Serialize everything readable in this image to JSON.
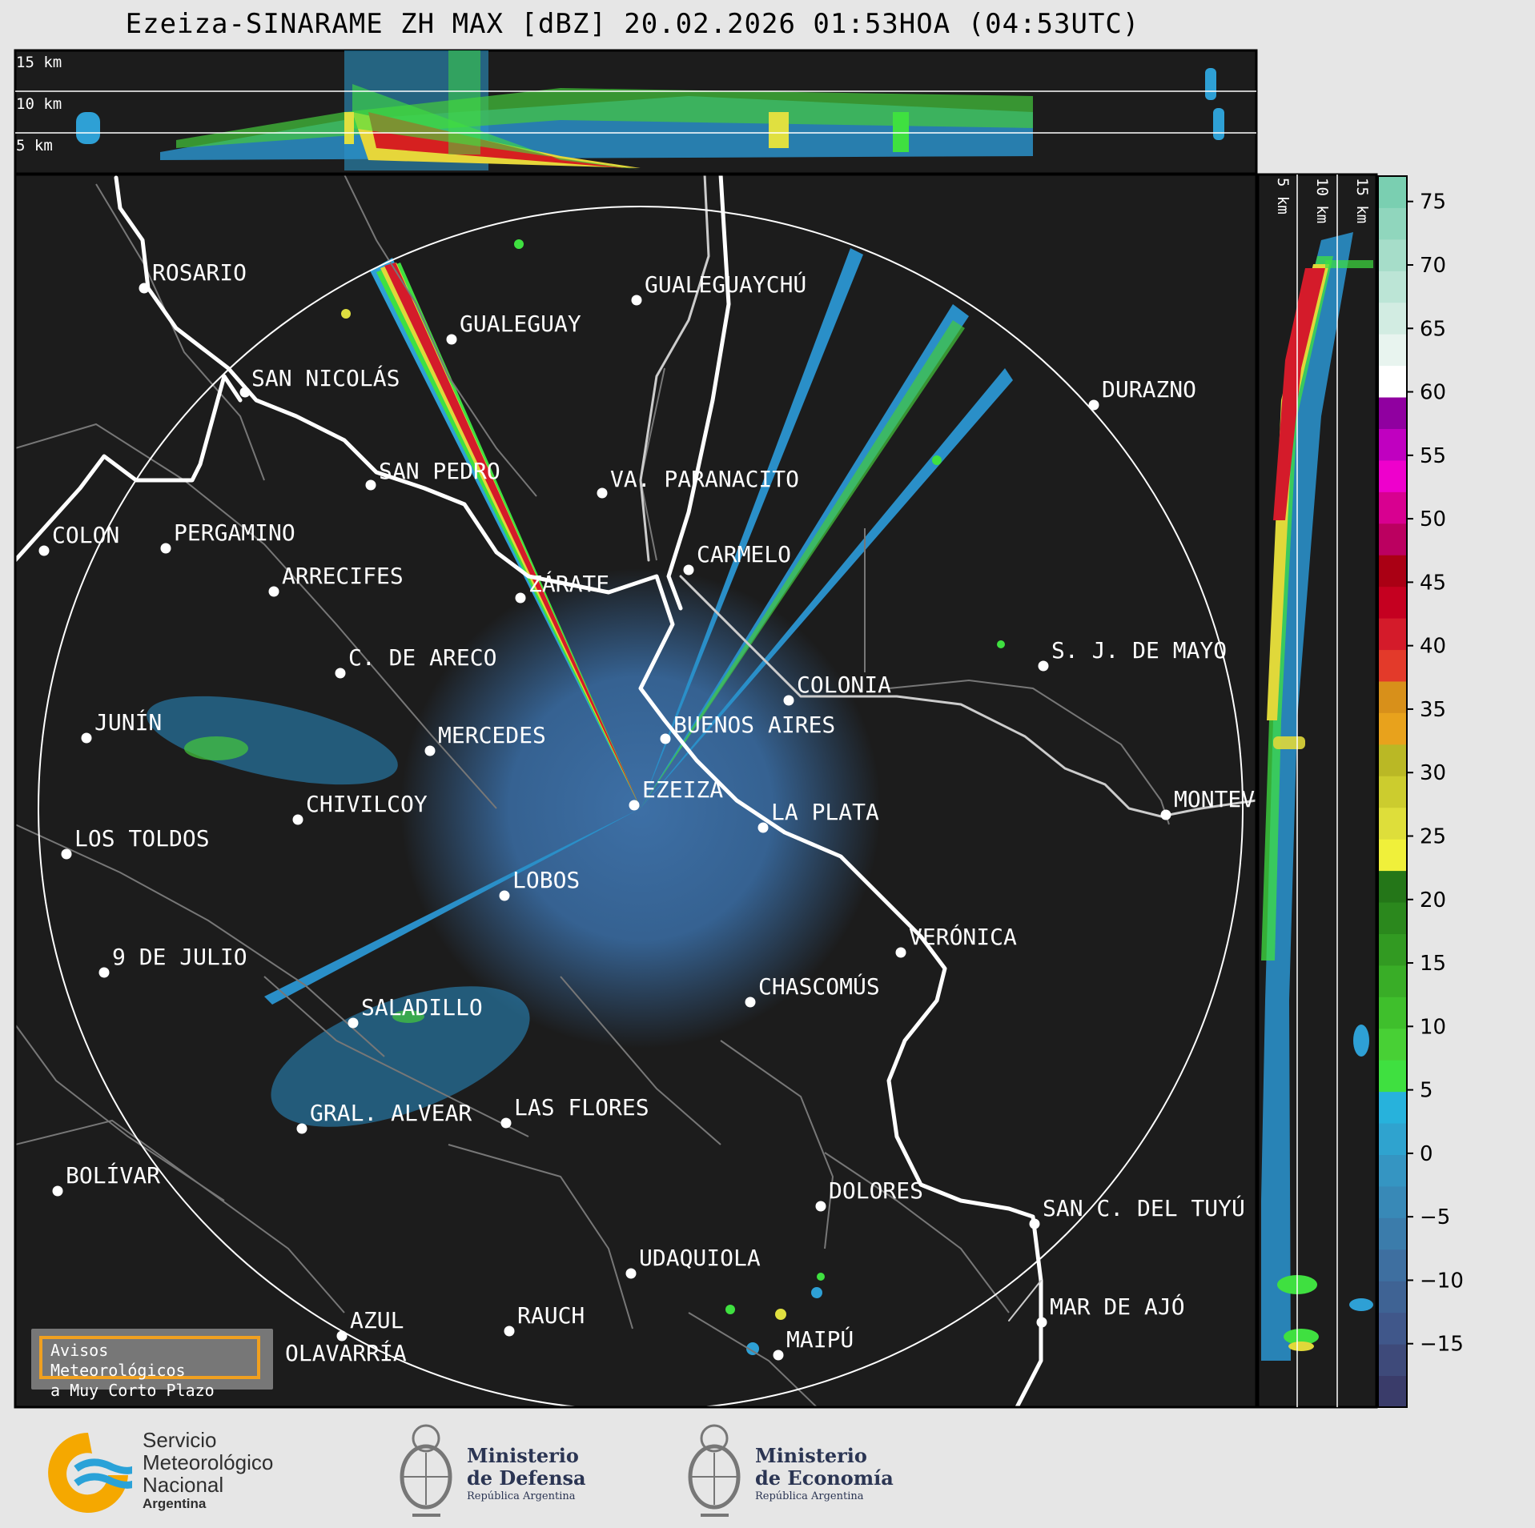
{
  "title": "Ezeiza-SINARAME ZH MAX [dBZ] 20.02.2026 01:53HOA (04:53UTC)",
  "top_panel_labels": [
    "15 km",
    "10 km",
    "5 km"
  ],
  "side_panel_labels": [
    "5 km",
    "10 km",
    "15 km"
  ],
  "colorbar": {
    "unit": "dBZ",
    "ticks": [
      "75",
      "70",
      "65",
      "60",
      "55",
      "50",
      "45",
      "40",
      "35",
      "30",
      "25",
      "20",
      "15",
      "10",
      "5",
      "0",
      "−5",
      "−10",
      "−15"
    ],
    "colors": [
      "#3a3c6a",
      "#3e4a7a",
      "#40578a",
      "#3f6394",
      "#3e6fa0",
      "#3b7cab",
      "#3889b7",
      "#3595c2",
      "#2fa3cf",
      "#27b2dc",
      "#3fe040",
      "#48d035",
      "#3fbf2c",
      "#39ad27",
      "#329a22",
      "#2b881d",
      "#247618",
      "#f0f03a",
      "#dede3a",
      "#cccc2e",
      "#bab825",
      "#e8a21c",
      "#d8901a",
      "#e33a2a",
      "#d41b2a",
      "#c50020",
      "#aa0014",
      "#bb0060",
      "#d80090",
      "#ee00cc",
      "#c000c0",
      "#9000a0",
      "#ffffff",
      "#e8f4ef",
      "#d2ece2",
      "#bce5d6",
      "#a6ddc9",
      "#90d6bd",
      "#7acfb1"
    ]
  },
  "cities": [
    {
      "name": "ROSARIO"
    },
    {
      "name": "GUALEGUAYCHÚ"
    },
    {
      "name": "GUALEGUAY"
    },
    {
      "name": "SAN NICOLÁS"
    },
    {
      "name": "DURAZNO"
    },
    {
      "name": "SAN PEDRO"
    },
    {
      "name": "VA. PARANACITO"
    },
    {
      "name": "COLON"
    },
    {
      "name": "PERGAMINO"
    },
    {
      "name": "CARMELO"
    },
    {
      "name": "ARRECIFES"
    },
    {
      "name": "ZÁRATE"
    },
    {
      "name": "S. J. DE MAYO"
    },
    {
      "name": "C. DE ARECO"
    },
    {
      "name": "COLONIA"
    },
    {
      "name": "JUNÍN"
    },
    {
      "name": "BUENOS AIRES"
    },
    {
      "name": "MERCEDES"
    },
    {
      "name": "EZEIZA"
    },
    {
      "name": "MONTEVIDEO"
    },
    {
      "name": "CHIVILCOY"
    },
    {
      "name": "LA PLATA"
    },
    {
      "name": "LOS TOLDOS"
    },
    {
      "name": "LOBOS"
    },
    {
      "name": "VERÓNICA"
    },
    {
      "name": "9 DE JULIO"
    },
    {
      "name": "CHASCOMÚS"
    },
    {
      "name": "SALADILLO"
    },
    {
      "name": "GRAL. ALVEAR"
    },
    {
      "name": "LAS FLORES"
    },
    {
      "name": "BOLÍVAR"
    },
    {
      "name": "DOLORES"
    },
    {
      "name": "SAN C. DEL TUYÚ"
    },
    {
      "name": "UDAQUIOLA"
    },
    {
      "name": "MAR DE AJÓ"
    },
    {
      "name": "AZUL"
    },
    {
      "name": "RAUCH"
    },
    {
      "name": "OLAVARRÍA"
    },
    {
      "name": "MAIPÚ"
    }
  ],
  "notice": {
    "line1": "Avisos Meteorológicos",
    "line2": "a Muy Corto Plazo"
  },
  "footer": {
    "smn": {
      "line1": "Servicio",
      "line2": "Meteorológico",
      "line3": "Nacional",
      "line4": "Argentina"
    },
    "defensa": {
      "line1": "Ministerio",
      "line2": "de Defensa",
      "line3": "República Argentina"
    },
    "economia": {
      "line1": "Ministerio",
      "line2": "de Economía",
      "line3": "República Argentina"
    }
  }
}
